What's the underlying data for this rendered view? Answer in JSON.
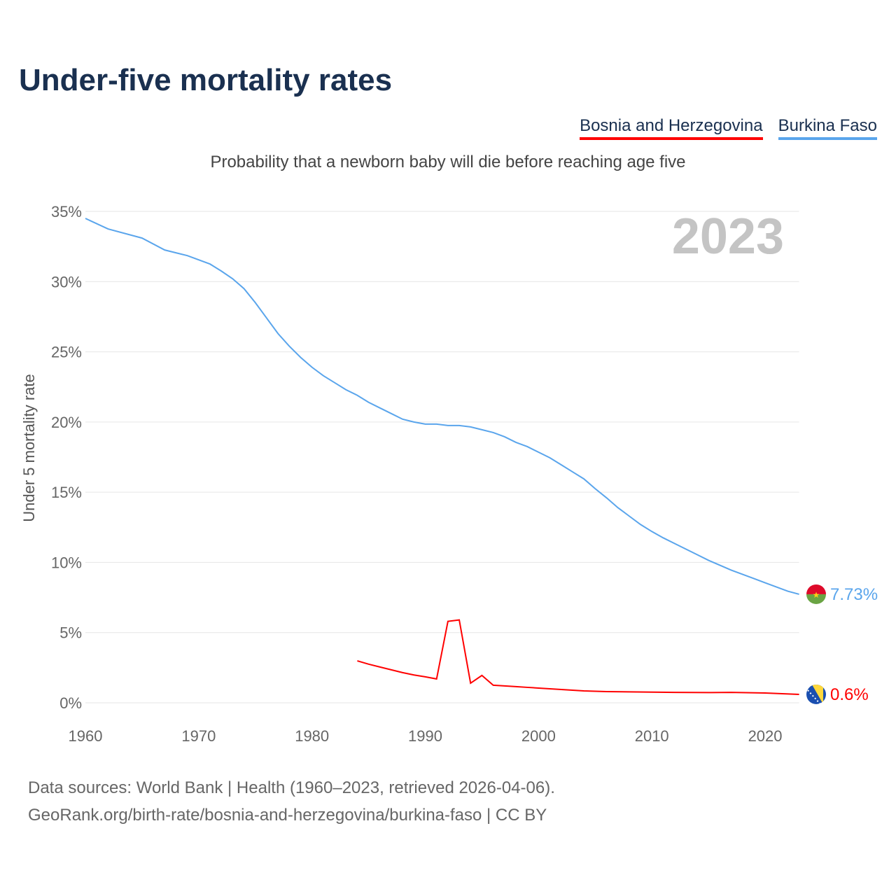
{
  "header": {
    "title": "Under-five mortality rates",
    "subtitle": "Probability that a newborn baby will die before reaching age five"
  },
  "legend": [
    {
      "label": "Bosnia and Herzegovina",
      "color": "#ff0000"
    },
    {
      "label": "Burkina Faso",
      "color": "#5aa5ec"
    }
  ],
  "year_label": "2023",
  "footer": {
    "line1": "Data sources: World Bank | Health (1960–2023, retrieved 2026-04-06).",
    "line2": "GeoRank.org/birth-rate/bosnia-and-herzegovina/burkina-faso | CC BY"
  },
  "chart_data": {
    "type": "line",
    "title": "Under-five mortality rates",
    "ylabel": "Under 5 mortality rate",
    "xlabel": "",
    "xlim": [
      1960,
      2023
    ],
    "ylim": [
      0,
      35
    ],
    "xticks": [
      1960,
      1970,
      1980,
      1990,
      2000,
      2010,
      2020
    ],
    "yticks": [
      0,
      5,
      10,
      15,
      20,
      25,
      30,
      35
    ],
    "ytick_labels": [
      "0%",
      "5%",
      "10%",
      "15%",
      "20%",
      "25%",
      "30%",
      "35%"
    ],
    "grid": true,
    "legend_position": "top-right",
    "series": [
      {
        "name": "Burkina Faso",
        "color": "#5aa5ec",
        "end_label": "7.73%",
        "x": [
          1960,
          1962,
          1965,
          1967,
          1969,
          1971,
          1972,
          1973,
          1974,
          1975,
          1976,
          1977,
          1978,
          1979,
          1980,
          1981,
          1982,
          1983,
          1984,
          1985,
          1986,
          1987,
          1988,
          1989,
          1990,
          1991,
          1992,
          1993,
          1994,
          1995,
          1996,
          1997,
          1998,
          1999,
          2000,
          2001,
          2002,
          2003,
          2004,
          2005,
          2006,
          2007,
          2008,
          2009,
          2010,
          2011,
          2012,
          2013,
          2014,
          2015,
          2016,
          2017,
          2018,
          2019,
          2020,
          2021,
          2022,
          2023
        ],
        "values": [
          34.5,
          33.75,
          33.1,
          32.25,
          31.85,
          31.25,
          30.75,
          30.2,
          29.5,
          28.5,
          27.4,
          26.3,
          25.4,
          24.6,
          23.9,
          23.3,
          22.8,
          22.3,
          21.9,
          21.4,
          21.0,
          20.6,
          20.2,
          20.0,
          19.85,
          19.85,
          19.75,
          19.75,
          19.65,
          19.45,
          19.25,
          18.95,
          18.55,
          18.25,
          17.85,
          17.45,
          16.95,
          16.45,
          15.95,
          15.25,
          14.6,
          13.9,
          13.3,
          12.7,
          12.2,
          11.75,
          11.35,
          10.95,
          10.55,
          10.15,
          9.8,
          9.45,
          9.15,
          8.85,
          8.55,
          8.25,
          7.95,
          7.73
        ]
      },
      {
        "name": "Bosnia and Herzegovina",
        "color": "#ff0000",
        "end_label": "0.6%",
        "x": [
          1984,
          1985,
          1986,
          1987,
          1988,
          1989,
          1990,
          1991,
          1992,
          1993,
          1994,
          1995,
          1996,
          1997,
          1998,
          1999,
          2000,
          2001,
          2002,
          2003,
          2004,
          2005,
          2006,
          2008,
          2010,
          2012,
          2015,
          2017,
          2020,
          2023
        ],
        "values": [
          2.99,
          2.75,
          2.55,
          2.35,
          2.15,
          1.98,
          1.85,
          1.7,
          5.8,
          5.9,
          1.4,
          1.95,
          1.25,
          1.2,
          1.15,
          1.1,
          1.05,
          1.0,
          0.95,
          0.9,
          0.85,
          0.82,
          0.8,
          0.78,
          0.76,
          0.74,
          0.73,
          0.74,
          0.7,
          0.6
        ]
      }
    ]
  }
}
